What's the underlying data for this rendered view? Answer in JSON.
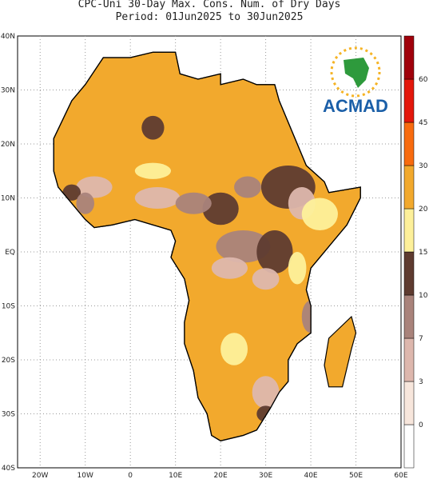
{
  "title": "CPC-Uni 30-Day Max. Cons. Num. of Dry Days",
  "subtitle": "Period: 01Jun2025 to 30Jun2025",
  "x_labels": [
    "20W",
    "10W",
    "0",
    "10E",
    "20E",
    "30E",
    "40E",
    "50E",
    "60E"
  ],
  "y_labels": [
    "40N",
    "30N",
    "20N",
    "10N",
    "EQ",
    "10S",
    "20S",
    "30S",
    "40S"
  ],
  "colorbar": {
    "levels": [
      0,
      3,
      7,
      10,
      15,
      20,
      30,
      45,
      60
    ],
    "colors": [
      "#ffffff",
      "#f7e6dc",
      "#ddb7ad",
      "#a9837b",
      "#5e3b30",
      "#fdf09a",
      "#f2a92d",
      "#f86b0f",
      "#e3170b",
      "#a0000b"
    ]
  },
  "logo": "ACMAD"
}
